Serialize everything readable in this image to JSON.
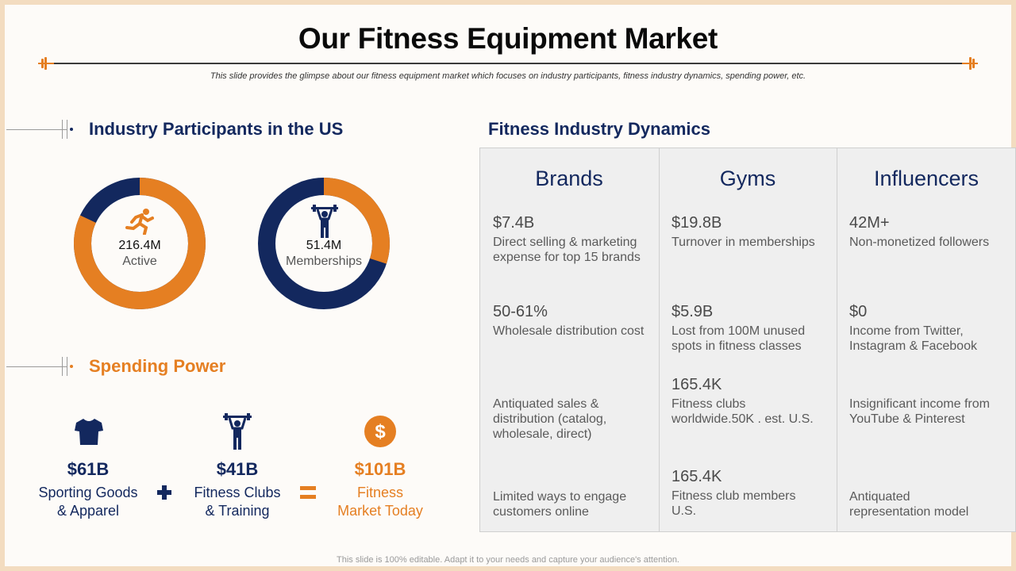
{
  "slide": {
    "title": "Our Fitness Equipment Market",
    "subtitle": "This slide provides the glimpse about our fitness equipment market which focuses on industry participants, fitness industry dynamics, spending power, etc.",
    "footer": "This slide is 100% editable. Adapt it to your needs and capture your audience's attention.",
    "colors": {
      "navy": "#13285e",
      "orange": "#e57f22",
      "panel": "#efefef"
    }
  },
  "participants": {
    "heading": "Industry Participants in the US",
    "donuts": [
      {
        "value": "216.4M",
        "label": "Active",
        "icon": "running-person-icon",
        "orange_share": 0.82
      },
      {
        "value": "51.4M",
        "label": "Memberships",
        "icon": "weightlifter-icon",
        "orange_share": 0.3
      }
    ]
  },
  "spending": {
    "heading": "Spending Power",
    "items": [
      {
        "value": "$61B",
        "label_line1": "Sporting Goods",
        "label_line2": "& Apparel",
        "icon": "tshirt-icon"
      },
      {
        "value": "$41B",
        "label_line1": "Fitness Clubs",
        "label_line2": "& Training",
        "icon": "weightlifter-icon"
      },
      {
        "value": "$101B",
        "label_line1": "Fitness",
        "label_line2": "Market Today",
        "icon": "dollar-icon"
      }
    ],
    "operators": [
      "plus-icon",
      "equals-icon"
    ]
  },
  "dynamics": {
    "heading": "Fitness Industry Dynamics",
    "columns": [
      {
        "name": "Brands",
        "rows": [
          {
            "value": "$7.4B",
            "text": "Direct selling & marketing expense for top 15 brands"
          },
          {
            "value": "50-61%",
            "text": "Wholesale distribution cost"
          },
          {
            "value": "",
            "text": "Antiquated sales & distribution (catalog, wholesale, direct)"
          },
          {
            "value": "",
            "text": "Limited ways to engage customers online"
          }
        ]
      },
      {
        "name": "Gyms",
        "rows": [
          {
            "value": "$19.8B",
            "text": "Turnover  in memberships"
          },
          {
            "value": "$5.9B",
            "text": "Lost from 100M unused spots in fitness classes"
          },
          {
            "value": "165.4K",
            "text": "Fitness clubs worldwide.50K . est. U.S."
          },
          {
            "value": "165.4K",
            "text": "Fitness club members U.S."
          }
        ]
      },
      {
        "name": "Influencers",
        "rows": [
          {
            "value": "42M+",
            "text": "Non-monetized followers"
          },
          {
            "value": "$0",
            "text": "Income from Twitter, Instagram & Facebook"
          },
          {
            "value": "",
            "text": "Insignificant  income from YouTube  & Pinterest"
          },
          {
            "value": "",
            "text": "Antiquated representation model"
          }
        ]
      }
    ]
  }
}
